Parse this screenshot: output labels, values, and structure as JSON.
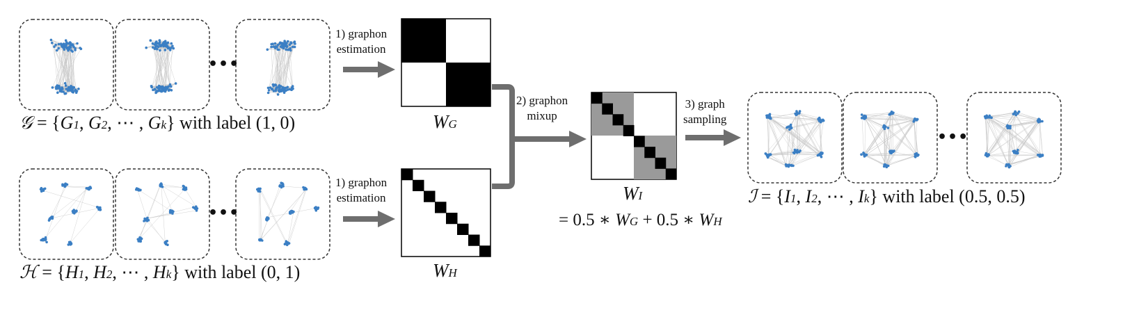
{
  "steps": {
    "estimation_top": {
      "line1": "1) graphon",
      "line2": "estimation"
    },
    "estimation_bottom": {
      "line1": "1) graphon",
      "line2": "estimation"
    },
    "mixup": {
      "line1": "2) graphon",
      "line2": "mixup"
    },
    "sampling": {
      "line1": "3) graph",
      "line2": "sampling"
    }
  },
  "sets": {
    "G": {
      "symbol": "𝒢",
      "open": " = {",
      "first": "G",
      "first_sub": "1",
      "second": "G",
      "second_sub": "2",
      "dots": ", ⋯ ,",
      "last": "G",
      "last_sub": "k",
      "close": "}",
      "suffix": " with label (1, 0)"
    },
    "H": {
      "symbol": "ℋ",
      "open": " = {",
      "first": "H",
      "first_sub": "1",
      "second": "H",
      "second_sub": "2",
      "dots": ", ⋯ ,",
      "last": "H",
      "last_sub": "k",
      "close": "}",
      "suffix": " with label (0, 1)"
    },
    "I": {
      "symbol": "ℐ",
      "open": " = {",
      "first": "I",
      "first_sub": "1",
      "second": "I",
      "second_sub": "2",
      "dots": ", ⋯ ,",
      "last": "I",
      "last_sub": "k",
      "close": "}",
      "suffix": " with label (0.5, 0.5)"
    }
  },
  "graphons": {
    "WG": {
      "base": "W",
      "sub": "G"
    },
    "WH": {
      "base": "W",
      "sub": "H"
    },
    "WI": {
      "base": "W",
      "sub": "I"
    }
  },
  "formula": {
    "eq": "= 0.5 ∗ ",
    "w1": "W",
    "w1_sub": "G",
    "plus": " + 0.5 ∗ ",
    "w2": "W",
    "w2_sub": "H"
  },
  "ellipsis": "•••",
  "colors": {
    "node": "#3b7fc4",
    "edge": "#b8b8b8",
    "arrow": "#6e6e6e",
    "dark": "#000000",
    "mix_gray": "#9a9a9a",
    "box_border": "#333333"
  }
}
